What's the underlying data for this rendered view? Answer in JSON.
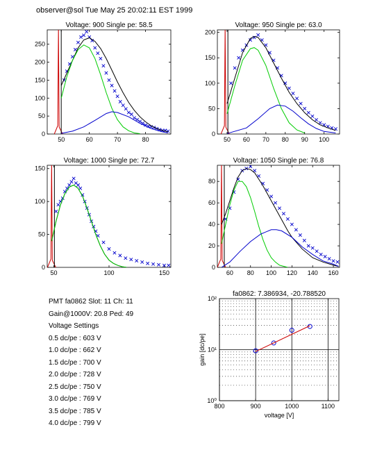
{
  "header": {
    "text": "observer@sol  Tue May 25 20:02:11 EST 1999"
  },
  "colors": {
    "data": "#0000cc",
    "fit": "#000000",
    "single": "#00cc00",
    "double": "#0000cc",
    "pedestal": "#cc0000",
    "gainfit": "#cc0000",
    "gainpoints": "#0000cc"
  },
  "info": {
    "lines": [
      "PMT fa0862 Slot: 11 Ch: 11",
      "Gain@1000V: 20.8 Ped: 49",
      "Voltage Settings",
      "0.5 dc/pe : 603 V",
      "1.0 dc/pe : 662 V",
      "1.5 dc/pe : 700 V",
      "2.0 dc/pe : 728 V",
      "2.5 dc/pe : 750 V",
      "3.0 dc/pe : 769 V",
      "3.5 dc/pe : 785 V",
      "4.0 dc/pe : 799 V"
    ]
  },
  "chart_data": [
    {
      "type": "scatter",
      "title": "Voltage: 900 Single pe: 58.5",
      "xlabel": "",
      "ylabel": "",
      "xlim": [
        45,
        89
      ],
      "ylim": [
        0,
        290
      ],
      "xticks": [
        50,
        60,
        70,
        80
      ],
      "yticks": [
        0,
        50,
        100,
        150,
        200,
        250
      ],
      "pedestal_x": 49,
      "series": [
        {
          "role": "data",
          "x": [
            51,
            52,
            53,
            54,
            55,
            56,
            57,
            58,
            59,
            60,
            61,
            62,
            63,
            64,
            65,
            66,
            67,
            68,
            69,
            70,
            71,
            72,
            73,
            74,
            75,
            76,
            77,
            78,
            79,
            80,
            81,
            82,
            83,
            84,
            85,
            86,
            87,
            88
          ],
          "values": [
            150,
            175,
            195,
            215,
            235,
            255,
            270,
            275,
            285,
            270,
            260,
            240,
            225,
            210,
            190,
            170,
            150,
            135,
            120,
            105,
            90,
            80,
            70,
            60,
            55,
            45,
            40,
            35,
            30,
            25,
            22,
            20,
            18,
            15,
            12,
            10,
            10,
            8
          ]
        },
        {
          "role": "fit",
          "x": [
            50,
            52,
            54,
            56,
            58,
            60,
            62,
            64,
            66,
            68,
            70,
            72,
            74,
            76,
            78,
            80,
            82,
            84,
            86,
            88
          ],
          "values": [
            135,
            170,
            205,
            240,
            262,
            268,
            258,
            238,
            210,
            178,
            145,
            115,
            88,
            66,
            48,
            34,
            23,
            15,
            10,
            6
          ]
        },
        {
          "role": "single",
          "x": [
            50,
            52,
            54,
            56,
            58,
            60,
            62,
            64,
            66,
            68,
            70,
            72,
            74,
            76,
            78
          ],
          "values": [
            100,
            160,
            205,
            235,
            248,
            240,
            210,
            165,
            115,
            72,
            40,
            20,
            9,
            3,
            1
          ]
        },
        {
          "role": "double",
          "x": [
            50,
            54,
            58,
            62,
            66,
            68,
            70,
            74,
            78,
            82,
            86,
            88
          ],
          "values": [
            2,
            8,
            20,
            38,
            57,
            62,
            60,
            48,
            30,
            15,
            6,
            3
          ]
        }
      ]
    },
    {
      "type": "scatter",
      "title": "Voltage: 950 Single pe: 63.0",
      "xlabel": "",
      "ylabel": "",
      "xlim": [
        45,
        108
      ],
      "ylim": [
        0,
        205
      ],
      "xticks": [
        50,
        60,
        70,
        80,
        90,
        100
      ],
      "yticks": [
        0,
        50,
        100,
        150,
        200
      ],
      "pedestal_x": 49,
      "series": [
        {
          "role": "data",
          "x": [
            52,
            54,
            56,
            58,
            60,
            62,
            64,
            66,
            68,
            70,
            72,
            74,
            76,
            78,
            80,
            82,
            84,
            86,
            88,
            90,
            92,
            94,
            96,
            98,
            100,
            102,
            104,
            106
          ],
          "values": [
            100,
            130,
            150,
            165,
            175,
            185,
            190,
            195,
            185,
            175,
            160,
            145,
            130,
            115,
            100,
            90,
            80,
            70,
            60,
            50,
            42,
            35,
            28,
            22,
            18,
            15,
            12,
            10
          ]
        },
        {
          "role": "fit",
          "x": [
            50,
            54,
            58,
            62,
            64,
            66,
            70,
            74,
            78,
            82,
            86,
            90,
            94,
            98,
            102,
            106
          ],
          "values": [
            60,
            110,
            160,
            188,
            192,
            190,
            170,
            140,
            110,
            82,
            60,
            42,
            28,
            18,
            12,
            7
          ]
        },
        {
          "role": "single",
          "x": [
            50,
            54,
            58,
            62,
            64,
            66,
            70,
            74,
            78,
            82,
            86,
            90
          ],
          "values": [
            40,
            95,
            145,
            168,
            170,
            165,
            135,
            90,
            50,
            22,
            8,
            2
          ]
        },
        {
          "role": "double",
          "x": [
            50,
            60,
            66,
            72,
            76,
            80,
            84,
            88,
            92,
            96,
            100,
            106
          ],
          "values": [
            1,
            12,
            30,
            50,
            57,
            55,
            45,
            32,
            20,
            11,
            5,
            2
          ]
        }
      ]
    },
    {
      "type": "scatter",
      "title": "Voltage: 1000 Single pe: 72.7",
      "xlabel": "",
      "ylabel": "",
      "xlim": [
        44,
        156
      ],
      "ylim": [
        0,
        155
      ],
      "xticks": [
        50,
        100,
        150
      ],
      "yticks": [
        0,
        50,
        100,
        150
      ],
      "pedestal_x": 48,
      "series": [
        {
          "role": "data",
          "x": [
            52,
            54,
            56,
            58,
            60,
            62,
            64,
            66,
            68,
            70,
            72,
            74,
            76,
            78,
            80,
            82,
            84,
            86,
            88,
            90,
            95,
            100,
            105,
            110,
            115,
            120,
            125,
            130,
            135,
            140,
            145,
            150,
            154
          ],
          "values": [
            85,
            95,
            100,
            105,
            115,
            120,
            125,
            130,
            135,
            128,
            125,
            120,
            110,
            100,
            90,
            80,
            70,
            62,
            55,
            48,
            38,
            28,
            22,
            18,
            14,
            12,
            10,
            8,
            6,
            5,
            4,
            3,
            3
          ]
        },
        {
          "role": "fit",
          "x": [
            48,
            52,
            56,
            60,
            64,
            68,
            72,
            76,
            80,
            84,
            88,
            92,
            96,
            100,
            104,
            108,
            112,
            116
          ],
          "values": [
            40,
            70,
            95,
            112,
            122,
            125,
            120,
            108,
            90,
            70,
            50,
            33,
            20,
            11,
            6,
            3,
            1,
            0
          ]
        },
        {
          "role": "single",
          "x": [
            48,
            52,
            56,
            60,
            64,
            68,
            72,
            76,
            80,
            84,
            88,
            92,
            96,
            100,
            104,
            108,
            112,
            116
          ],
          "values": [
            40,
            70,
            95,
            112,
            122,
            125,
            120,
            108,
            90,
            70,
            50,
            33,
            20,
            11,
            6,
            3,
            1,
            0
          ]
        }
      ]
    },
    {
      "type": "scatter",
      "title": "Voltage: 1050 Single pe: 76.8",
      "xlabel": "",
      "ylabel": "",
      "xlim": [
        48,
        166
      ],
      "ylim": [
        0,
        95
      ],
      "xticks": [
        60,
        80,
        100,
        120,
        140,
        160
      ],
      "yticks": [
        0,
        20,
        40,
        60,
        80
      ],
      "pedestal_x": 52,
      "series": [
        {
          "role": "data",
          "x": [
            56,
            60,
            64,
            68,
            72,
            76,
            80,
            84,
            88,
            92,
            96,
            100,
            104,
            108,
            112,
            116,
            120,
            124,
            128,
            132,
            136,
            140,
            144,
            148,
            152,
            156,
            160,
            164
          ],
          "values": [
            45,
            55,
            70,
            82,
            90,
            92,
            94,
            90,
            85,
            78,
            72,
            66,
            60,
            55,
            50,
            45,
            40,
            35,
            30,
            25,
            20,
            18,
            15,
            12,
            10,
            8,
            6,
            5
          ]
        },
        {
          "role": "fit",
          "x": [
            52,
            56,
            60,
            64,
            68,
            72,
            76,
            80,
            84,
            88,
            92,
            96,
            100,
            104,
            108,
            112,
            116,
            120,
            130,
            140,
            150,
            160,
            165
          ],
          "values": [
            40,
            50,
            62,
            74,
            84,
            90,
            92,
            91,
            88,
            82,
            76,
            69,
            62,
            55,
            48,
            41,
            34,
            28,
            17,
            9,
            5,
            2,
            1
          ]
        },
        {
          "role": "single",
          "x": [
            52,
            56,
            60,
            64,
            68,
            72,
            76,
            80,
            84,
            88,
            92,
            96,
            100,
            104,
            108,
            112,
            116
          ],
          "values": [
            22,
            40,
            58,
            72,
            80,
            80,
            75,
            65,
            52,
            38,
            26,
            16,
            9,
            5,
            2,
            1,
            0
          ]
        },
        {
          "role": "double",
          "x": [
            52,
            60,
            70,
            80,
            90,
            100,
            105,
            110,
            120,
            130,
            140,
            150,
            160,
            165
          ],
          "values": [
            0,
            5,
            15,
            24,
            31,
            35,
            35,
            34,
            28,
            19,
            12,
            6,
            3,
            1
          ]
        }
      ]
    },
    {
      "type": "scatter",
      "title": "fa0862: 7.386934, -20.788520",
      "xlabel": "voltage [V]",
      "ylabel": "gain [dc/pe]",
      "xlim": [
        800,
        1130
      ],
      "ylim": [
        1,
        100
      ],
      "yscale": "log",
      "xticks": [
        800,
        900,
        1000,
        1100
      ],
      "ytick_labels": [
        "10⁰",
        "10¹",
        "10²"
      ],
      "series": [
        {
          "role": "points",
          "x": [
            900,
            950,
            1000,
            1050
          ],
          "values": [
            9.5,
            13.5,
            24.0,
            28.5
          ]
        },
        {
          "role": "gainfit",
          "x": [
            900,
            1050
          ],
          "values": [
            9.2,
            29.5
          ]
        }
      ]
    }
  ]
}
